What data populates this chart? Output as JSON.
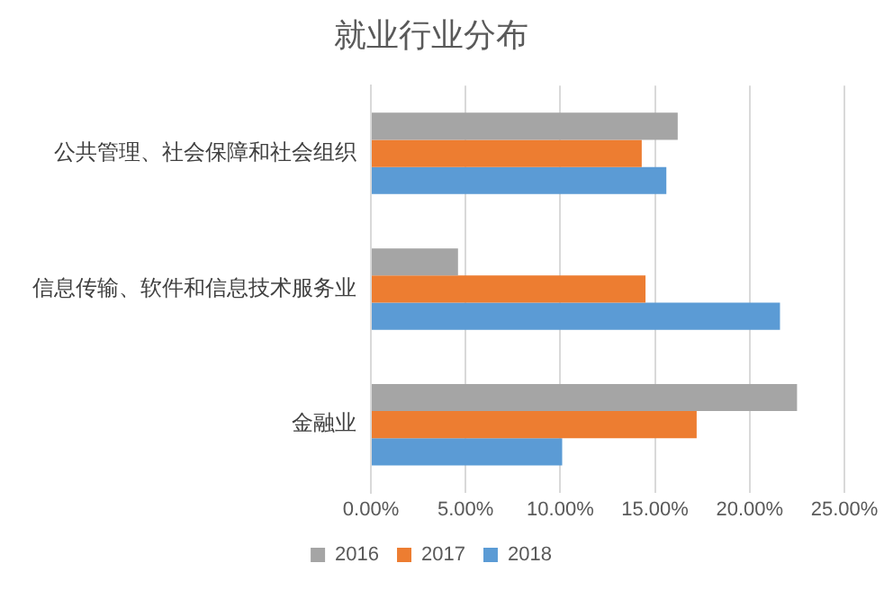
{
  "chart_data": {
    "type": "bar",
    "orientation": "horizontal",
    "title": "就业行业分布",
    "categories": [
      "公共管理、社会保障和社会组织",
      "信息传输、软件和信息技术服务业",
      "金融业"
    ],
    "series": [
      {
        "name": "2016",
        "color": "#a5a5a5",
        "values": [
          16.2,
          4.6,
          22.5
        ]
      },
      {
        "name": "2017",
        "color": "#ed7d31",
        "values": [
          14.3,
          14.5,
          17.2
        ]
      },
      {
        "name": "2018",
        "color": "#5b9bd5",
        "values": [
          15.6,
          21.6,
          10.1
        ]
      }
    ],
    "xlim": [
      0,
      25
    ],
    "xticks": [
      {
        "value": 0,
        "label": "0.00%"
      },
      {
        "value": 5,
        "label": "5.00%"
      },
      {
        "value": 10,
        "label": "10.00%"
      },
      {
        "value": 15,
        "label": "15.00%"
      },
      {
        "value": 20,
        "label": "20.00%"
      },
      {
        "value": 25,
        "label": "25.00%"
      }
    ],
    "grid": "x",
    "legend": "bottom"
  }
}
